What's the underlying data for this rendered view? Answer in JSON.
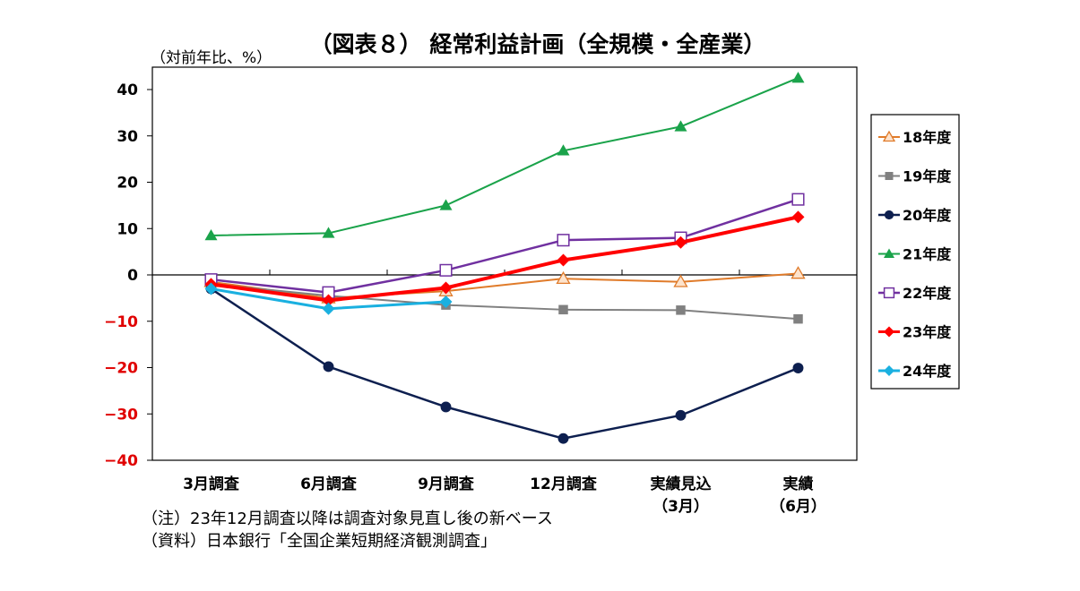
{
  "chart_data": {
    "type": "line",
    "title": "（図表８） 経常利益計画（全規模・全産業）",
    "unit_label": "（対前年比、%）",
    "categories": [
      "3月調査",
      "6月調査",
      "9月調査",
      "12月調査",
      "実績見込",
      "実績"
    ],
    "category_sublabels": [
      "",
      "",
      "",
      "",
      "（3月）",
      "（6月）"
    ],
    "ylim": [
      -40,
      40
    ],
    "yticks": [
      40,
      30,
      20,
      10,
      0,
      -10,
      -20,
      -30,
      -40
    ],
    "ytick_labels": [
      "40",
      "30",
      "20",
      "10",
      "0",
      "−10",
      "−20",
      "−30",
      "−40"
    ],
    "ytick_colors": {
      "positive": "#000000",
      "negative": "#e00000"
    },
    "legend_position": "right",
    "grid": false,
    "series": [
      {
        "name": "18年度",
        "values": [
          -1.5,
          -5.0,
          -3.5,
          -0.8,
          -1.5,
          0.3
        ],
        "color": "#e07b2a",
        "marker": "triangle-open",
        "width": 2
      },
      {
        "name": "19年度",
        "values": [
          -2.0,
          -4.5,
          -6.5,
          -7.5,
          -7.6,
          -9.5
        ],
        "color": "#808080",
        "marker": "square",
        "width": 2
      },
      {
        "name": "20年度",
        "values": [
          -3.0,
          -19.8,
          -28.5,
          -35.3,
          -30.3,
          -20.1
        ],
        "color": "#0d1f4f",
        "marker": "circle",
        "width": 2.5
      },
      {
        "name": "21年度",
        "values": [
          8.5,
          9.0,
          15.0,
          26.8,
          32.0,
          42.5
        ],
        "color": "#1aa34a",
        "marker": "triangle",
        "width": 2
      },
      {
        "name": "22年度",
        "values": [
          -1.0,
          -3.8,
          1.0,
          7.5,
          8.0,
          16.3
        ],
        "color": "#7030a0",
        "marker": "square-open",
        "width": 2.5
      },
      {
        "name": "23年度",
        "values": [
          -2.0,
          -5.5,
          -2.8,
          3.2,
          7.0,
          12.5
        ],
        "color": "#ff0000",
        "marker": "diamond",
        "width": 4
      },
      {
        "name": "24年度",
        "values": [
          -3.0,
          -7.3,
          -5.8,
          null,
          null,
          null
        ],
        "color": "#1ab0e0",
        "marker": "diamond",
        "width": 3
      }
    ],
    "notes": [
      "（注）23年12月調査以降は調査対象見直し後の新ベース",
      "（資料）日本銀行「全国企業短期経済観測調査」"
    ]
  }
}
